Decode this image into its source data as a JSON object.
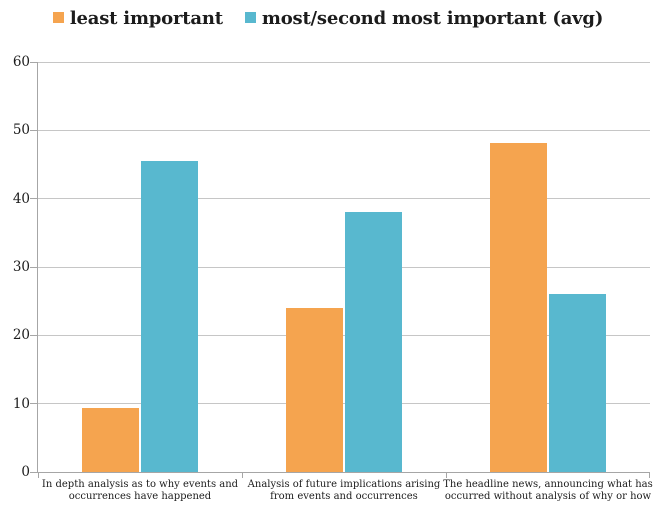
{
  "chart_data": {
    "type": "bar",
    "title": "",
    "xlabel": "",
    "ylabel": "",
    "categories": [
      "In depth analysis as to why events and occurrences have happened",
      "Analysis of future implications arising from events and occurrences",
      "The headline news, announcing what has occurred without analysis of why or how"
    ],
    "series": [
      {
        "name": "least important",
        "color": "#f5a44f",
        "values": [
          9.4,
          24,
          48.2
        ]
      },
      {
        "name": "most/second most important (avg)",
        "color": "#58b8cf",
        "values": [
          45.5,
          38,
          26
        ]
      }
    ],
    "ylim": [
      0,
      60
    ],
    "yticks": [
      0,
      10,
      20,
      30,
      40,
      50,
      60
    ],
    "grid": true,
    "legend_position": "top"
  },
  "colors": {
    "gridline": "#c6c6c6",
    "axis": "#a6a6a6",
    "text": "#1c1c1c",
    "background": "#ffffff"
  }
}
